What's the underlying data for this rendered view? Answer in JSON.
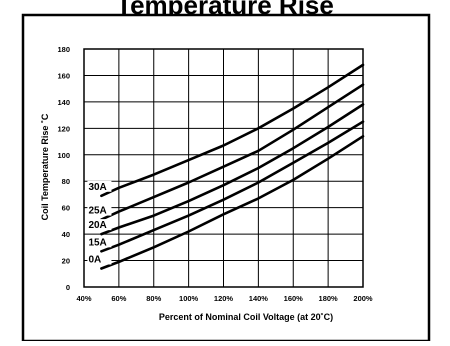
{
  "header": {
    "title": "Temperature Rise"
  },
  "chart_data": {
    "type": "line",
    "title": "",
    "xlabel": "Percent of Nominal Coil Voltage (at 20˚C)",
    "ylabel": "Coil Temperature Rise ˚C",
    "xlim": [
      40,
      200
    ],
    "ylim": [
      0,
      180
    ],
    "x_ticks": [
      40,
      60,
      80,
      100,
      120,
      140,
      160,
      180,
      200
    ],
    "x_tick_labels": [
      "40%",
      "60%",
      "80%",
      "100%",
      "120%",
      "140%",
      "160%",
      "180%",
      "200%"
    ],
    "y_ticks": [
      0,
      20,
      40,
      60,
      80,
      100,
      120,
      140,
      160,
      180
    ],
    "y_tick_labels": [
      "0",
      "20",
      "40",
      "60",
      "80",
      "100",
      "120",
      "140",
      "160",
      "180"
    ],
    "grid": true,
    "line_color": "#000000",
    "series": [
      {
        "name": "0A",
        "x": [
          50,
          60,
          80,
          100,
          120,
          140,
          160,
          180,
          200
        ],
        "y": [
          14,
          19,
          30,
          42,
          55,
          67,
          81,
          97,
          114
        ]
      },
      {
        "name": "15A",
        "x": [
          50,
          60,
          80,
          100,
          120,
          140,
          160,
          180,
          200
        ],
        "y": [
          27,
          32,
          43,
          54,
          66,
          79,
          94,
          109,
          125
        ]
      },
      {
        "name": "20A",
        "x": [
          50,
          60,
          80,
          100,
          120,
          140,
          160,
          180,
          200
        ],
        "y": [
          40,
          45,
          54,
          65,
          77,
          90,
          105,
          121,
          138
        ]
      },
      {
        "name": "25A",
        "x": [
          50,
          60,
          80,
          100,
          120,
          140,
          160,
          180,
          200
        ],
        "y": [
          51,
          57,
          68,
          79,
          91,
          103,
          119,
          136,
          153
        ]
      },
      {
        "name": "30A",
        "x": [
          50,
          60,
          80,
          100,
          120,
          140,
          160,
          180,
          200
        ],
        "y": [
          69,
          75,
          85,
          96,
          107,
          120,
          135,
          151,
          168
        ]
      }
    ]
  }
}
